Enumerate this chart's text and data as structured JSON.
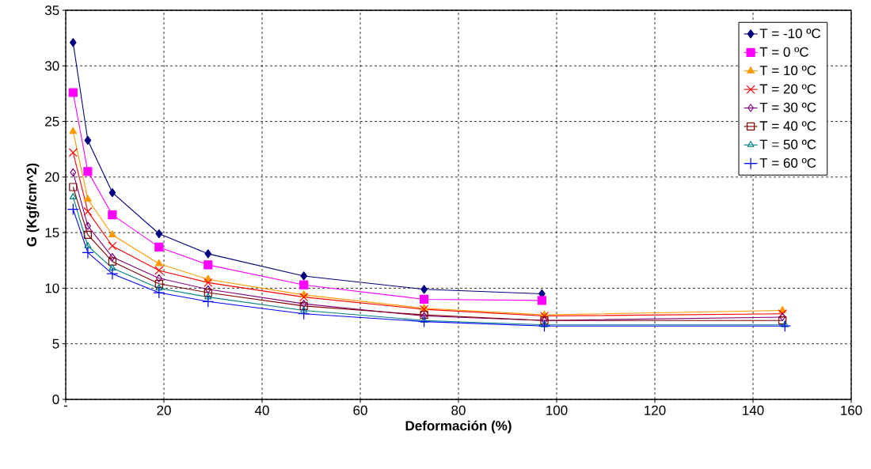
{
  "chart_data": {
    "type": "line",
    "xlabel": "Deformación (%)",
    "ylabel": "G (Kgf/cm^2)",
    "xlim": [
      0,
      160
    ],
    "ylim": [
      0,
      35
    ],
    "xticks": [
      {
        "value": 0,
        "label": "-"
      },
      20,
      40,
      60,
      80,
      100,
      120,
      140,
      160
    ],
    "yticks": [
      0,
      5,
      10,
      15,
      20,
      25,
      30,
      35
    ],
    "grid": true,
    "legend": "top right",
    "series": [
      {
        "name": "T = -10 ºC",
        "color": "#000080",
        "marker": "diamond",
        "x": [
          1.5,
          4.5,
          9.5,
          19,
          29,
          48.5,
          73,
          97
        ],
        "values": [
          32.1,
          23.3,
          18.6,
          14.9,
          13.1,
          11.1,
          9.9,
          9.5
        ]
      },
      {
        "name": "T = 0 ºC",
        "color": "#ff00ff",
        "marker": "square",
        "x": [
          1.5,
          4.5,
          9.5,
          19,
          29,
          48.5,
          73,
          97
        ],
        "values": [
          27.6,
          20.5,
          16.6,
          13.7,
          12.1,
          10.3,
          9.0,
          8.9
        ]
      },
      {
        "name": "T = 10 ºC",
        "color": "#ff9900",
        "marker": "triangle",
        "x": [
          1.5,
          4.5,
          9.5,
          19,
          29,
          48.5,
          73,
          97.5,
          146
        ],
        "values": [
          24.1,
          18.0,
          14.8,
          12.2,
          10.8,
          9.4,
          8.2,
          7.6,
          8.0
        ]
      },
      {
        "name": "T = 20 ºC",
        "color": "#ff0000",
        "marker": "cross",
        "x": [
          1.5,
          4.5,
          9.5,
          19,
          29,
          48.5,
          73,
          97.5,
          146
        ],
        "values": [
          22.2,
          16.9,
          13.8,
          11.6,
          10.5,
          9.2,
          8.1,
          7.5,
          7.7
        ]
      },
      {
        "name": "T = 30 ºC",
        "color": "#800080",
        "marker": "diamond",
        "x": [
          1.5,
          4.5,
          9.5,
          19,
          29,
          48.5,
          73,
          97.5,
          146
        ],
        "values": [
          20.4,
          15.6,
          12.8,
          10.9,
          9.9,
          8.6,
          7.5,
          7.1,
          7.4
        ]
      },
      {
        "name": "T = 40 ºC",
        "color": "#800000",
        "marker": "square",
        "x": [
          1.5,
          4.5,
          9.5,
          19,
          29,
          48.5,
          73,
          97.5,
          146
        ],
        "values": [
          19.1,
          14.8,
          12.4,
          10.4,
          9.6,
          8.4,
          7.6,
          7.1,
          7.1
        ]
      },
      {
        "name": "T = 50 ºC",
        "color": "#008080",
        "marker": "triangle",
        "x": [
          1.5,
          4.5,
          9.5,
          19,
          29,
          48.5,
          73,
          97.5,
          146.5
        ],
        "values": [
          18.2,
          13.8,
          11.8,
          10.0,
          9.2,
          8.0,
          7.1,
          6.7,
          6.7
        ]
      },
      {
        "name": "T = 60 ºC",
        "color": "#0000ff",
        "marker": "cross",
        "x": [
          1.5,
          4.5,
          9.5,
          19,
          29,
          48.5,
          73,
          97.5,
          146.5
        ],
        "values": [
          17.1,
          13.2,
          11.3,
          9.6,
          8.8,
          7.7,
          7.0,
          6.6,
          6.6
        ]
      }
    ]
  }
}
